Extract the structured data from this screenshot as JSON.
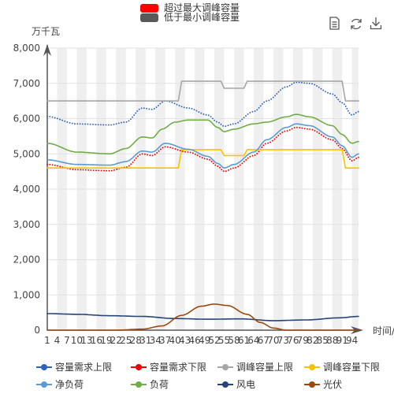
{
  "toolbox": {
    "icons": [
      "data-view-icon",
      "restore-icon",
      "download-icon"
    ]
  },
  "top_legend": [
    {
      "label": "超过最大调峰容量",
      "color": "#ff0000"
    },
    {
      "label": "低于最小调峰容量",
      "color": "#595959"
    }
  ],
  "chart_data": {
    "type": "line",
    "ylabel": "万千瓦",
    "xlabel": "时间/",
    "ylim": [
      0,
      8000
    ],
    "yticks": [
      0,
      1000,
      2000,
      3000,
      4000,
      5000,
      6000,
      7000,
      8000
    ],
    "ytick_labels": [
      "0",
      "1,000",
      "2,000",
      "3,000",
      "4,000",
      "5,000",
      "6,000",
      "7,000",
      "8,000"
    ],
    "x_start": 1,
    "x_end": 96,
    "x_tick_step": 3,
    "grid": "alternating vertical bands",
    "legend_position": "bottom",
    "series": [
      {
        "name": "容量需求上限",
        "color": "#2e63bd",
        "style": "dotted",
        "anchors": [
          [
            1,
            6060
          ],
          [
            10,
            5850
          ],
          [
            20,
            5820
          ],
          [
            25,
            5900
          ],
          [
            30,
            6300
          ],
          [
            33,
            6260
          ],
          [
            37,
            6500
          ],
          [
            44,
            6300
          ],
          [
            50,
            6100
          ],
          [
            53,
            5900
          ],
          [
            55,
            5780
          ],
          [
            58,
            5850
          ],
          [
            64,
            6200
          ],
          [
            68,
            6500
          ],
          [
            74,
            6900
          ],
          [
            77,
            7030
          ],
          [
            81,
            7000
          ],
          [
            88,
            6700
          ],
          [
            91,
            6450
          ],
          [
            94,
            6100
          ],
          [
            96,
            6200
          ]
        ]
      },
      {
        "name": "容量需求下限",
        "color": "#ee0000",
        "style": "dotted",
        "anchors": [
          [
            1,
            4700
          ],
          [
            10,
            4550
          ],
          [
            20,
            4520
          ],
          [
            25,
            4620
          ],
          [
            30,
            5000
          ],
          [
            33,
            4950
          ],
          [
            37,
            5200
          ],
          [
            44,
            5050
          ],
          [
            50,
            4850
          ],
          [
            53,
            4650
          ],
          [
            55,
            4500
          ],
          [
            58,
            4600
          ],
          [
            64,
            4950
          ],
          [
            68,
            5300
          ],
          [
            74,
            5650
          ],
          [
            77,
            5750
          ],
          [
            81,
            5700
          ],
          [
            88,
            5400
          ],
          [
            91,
            5150
          ],
          [
            94,
            4800
          ],
          [
            96,
            4900
          ]
        ]
      },
      {
        "name": "调峰容量上限",
        "color": "#a6a6a6",
        "style": "solid",
        "anchors": [
          [
            1,
            6500
          ],
          [
            41,
            6500
          ],
          [
            42,
            7060
          ],
          [
            54,
            7060
          ],
          [
            55,
            6860
          ],
          [
            61,
            6860
          ],
          [
            62,
            7060
          ],
          [
            91,
            7060
          ],
          [
            92,
            6500
          ],
          [
            96,
            6500
          ]
        ]
      },
      {
        "name": "调峰容量下限",
        "color": "#f5c400",
        "style": "solid",
        "anchors": [
          [
            1,
            4600
          ],
          [
            41,
            4600
          ],
          [
            42,
            5120
          ],
          [
            54,
            5120
          ],
          [
            55,
            4950
          ],
          [
            61,
            4950
          ],
          [
            62,
            5120
          ],
          [
            91,
            5120
          ],
          [
            92,
            4600
          ],
          [
            96,
            4600
          ]
        ]
      },
      {
        "name": "净负荷",
        "color": "#5b9bd5",
        "style": "solid",
        "anchors": [
          [
            1,
            4830
          ],
          [
            10,
            4700
          ],
          [
            20,
            4680
          ],
          [
            25,
            4780
          ],
          [
            30,
            5080
          ],
          [
            33,
            5050
          ],
          [
            37,
            5300
          ],
          [
            44,
            5130
          ],
          [
            50,
            4930
          ],
          [
            53,
            4730
          ],
          [
            55,
            4600
          ],
          [
            58,
            4700
          ],
          [
            64,
            5050
          ],
          [
            68,
            5400
          ],
          [
            74,
            5750
          ],
          [
            77,
            5850
          ],
          [
            81,
            5800
          ],
          [
            88,
            5480
          ],
          [
            91,
            5230
          ],
          [
            94,
            4900
          ],
          [
            96,
            5000
          ]
        ]
      },
      {
        "name": "负荷",
        "color": "#70ad47",
        "style": "solid",
        "anchors": [
          [
            1,
            5300
          ],
          [
            10,
            5050
          ],
          [
            20,
            5000
          ],
          [
            25,
            5150
          ],
          [
            30,
            5480
          ],
          [
            33,
            5450
          ],
          [
            36,
            5700
          ],
          [
            40,
            5900
          ],
          [
            44,
            5960
          ],
          [
            50,
            5960
          ],
          [
            53,
            5750
          ],
          [
            55,
            5630
          ],
          [
            58,
            5700
          ],
          [
            64,
            5850
          ],
          [
            68,
            5900
          ],
          [
            74,
            6050
          ],
          [
            77,
            6120
          ],
          [
            81,
            6050
          ],
          [
            88,
            5800
          ],
          [
            91,
            5550
          ],
          [
            94,
            5300
          ],
          [
            96,
            5350
          ]
        ]
      },
      {
        "name": "风电",
        "color": "#264478",
        "style": "solid",
        "anchors": [
          [
            1,
            470
          ],
          [
            10,
            450
          ],
          [
            20,
            410
          ],
          [
            30,
            390
          ],
          [
            40,
            330
          ],
          [
            50,
            310
          ],
          [
            60,
            320
          ],
          [
            70,
            270
          ],
          [
            80,
            290
          ],
          [
            90,
            350
          ],
          [
            96,
            390
          ]
        ]
      },
      {
        "name": "光伏",
        "color": "#9e480e",
        "style": "solid",
        "anchors": [
          [
            1,
            0
          ],
          [
            22,
            0
          ],
          [
            30,
            30
          ],
          [
            36,
            120
          ],
          [
            42,
            420
          ],
          [
            48,
            680
          ],
          [
            52,
            740
          ],
          [
            56,
            700
          ],
          [
            62,
            450
          ],
          [
            66,
            220
          ],
          [
            70,
            60
          ],
          [
            74,
            0
          ],
          [
            96,
            0
          ]
        ]
      }
    ]
  }
}
